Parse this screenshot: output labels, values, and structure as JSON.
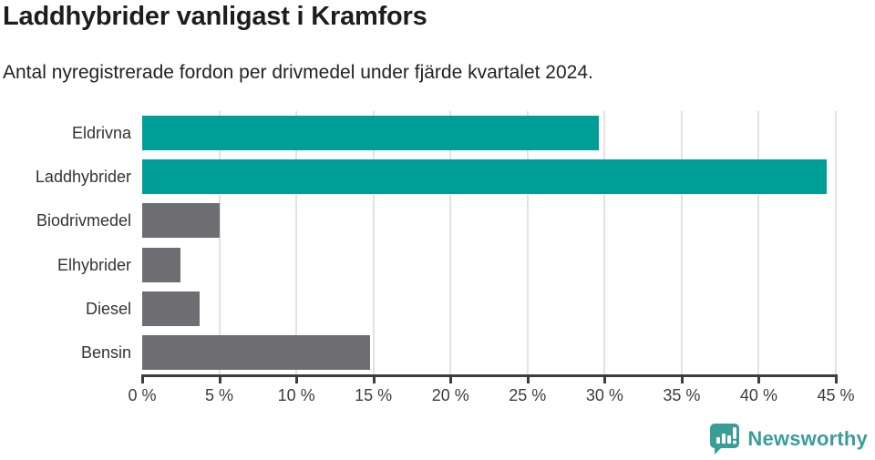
{
  "header": {
    "title": "Laddhybrider vanligast i Kramfors",
    "subtitle": "Antal nyregistrerade fordon per drivmedel under fjärde kvartalet 2024."
  },
  "chart_data": {
    "type": "bar",
    "orientation": "horizontal",
    "title": "Laddhybrider vanligast i Kramfors",
    "subtitle": "Antal nyregistrerade fordon per drivmedel under fjärde kvartalet 2024.",
    "categories": [
      "Eldrivna",
      "Laddhybrider",
      "Biodrivmedel",
      "Elhybrider",
      "Diesel",
      "Bensin"
    ],
    "values": [
      29.6,
      44.4,
      5.0,
      2.5,
      3.7,
      14.8
    ],
    "unit": "%",
    "highlighted_categories": [
      "Eldrivna",
      "Laddhybrider"
    ],
    "highlight_color": "#009e97",
    "default_color": "#6d6d72",
    "xlim": [
      0,
      45
    ],
    "x_ticks": [
      0,
      5,
      10,
      15,
      20,
      25,
      30,
      35,
      40,
      45
    ],
    "x_tick_labels": [
      "0 %",
      "5 %",
      "10 %",
      "15 %",
      "20 %",
      "25 %",
      "30 %",
      "35 %",
      "40 %",
      "45 %"
    ],
    "grid": "vertical",
    "gridline_color": "#e2e2e2",
    "axis_color": "#3d3d3d",
    "legend": "none"
  },
  "footer": {
    "brand": "Newsworthy",
    "brand_color": "#3a9e98"
  }
}
